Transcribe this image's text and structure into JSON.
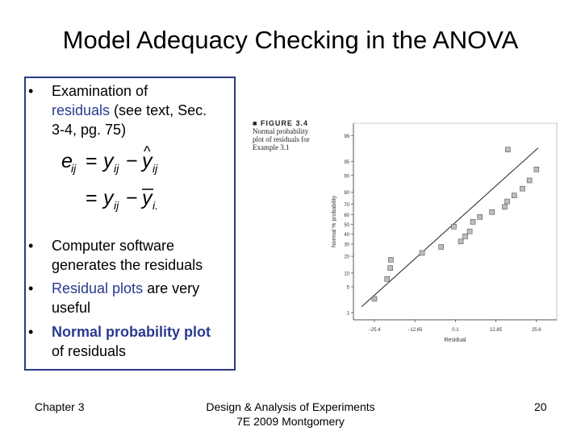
{
  "slide": {
    "title": "Model Adequacy Checking in the ANOVA"
  },
  "bullets": {
    "b1_line1": "Examination of",
    "b1_line2_hl": "residuals",
    "b1_line2_rest": " (see text, Sec.",
    "b1_line3": "3-4, pg. 75)",
    "b2_line1": "Computer software",
    "b2_line2": "generates the residuals",
    "b3_line1_hl": "Residual plots",
    "b3_line1_rest": " are very",
    "b3_line2": "useful",
    "b4_line1_hl": "Normal probability plot",
    "b4_line2": "of residuals",
    "bullet_char": "•"
  },
  "figure": {
    "label": "■ FIGURE 3.4",
    "caption_line1": "Normal probability",
    "caption_line2": "plot of residuals for",
    "caption_line3": "Example 3.1"
  },
  "chart_data": {
    "type": "scatter",
    "title": "",
    "xlabel": "Residual",
    "ylabel": "Normal % probability",
    "x_ticks": [
      "−25.4",
      "−12.65",
      "0.1",
      "12.85",
      "25.6"
    ],
    "y_ticks": [
      "1",
      "5",
      "10",
      "20",
      "30",
      "40",
      "50",
      "60",
      "70",
      "80",
      "90",
      "95",
      "99"
    ],
    "points": [
      {
        "x": -25.4,
        "y": 2.5
      },
      {
        "x": -21.4,
        "y": 7.5
      },
      {
        "x": -20.4,
        "y": 12.5
      },
      {
        "x": -20.2,
        "y": 17.5
      },
      {
        "x": -10.4,
        "y": 22.5
      },
      {
        "x": -4.4,
        "y": 27.5
      },
      {
        "x": 1.8,
        "y": 32.5
      },
      {
        "x": 3.2,
        "y": 37.5
      },
      {
        "x": 4.6,
        "y": 42.5
      },
      {
        "x": -0.4,
        "y": 47.5
      },
      {
        "x": 5.6,
        "y": 52.5
      },
      {
        "x": 7.8,
        "y": 57.5
      },
      {
        "x": 11.6,
        "y": 62.5
      },
      {
        "x": 15.6,
        "y": 67.5
      },
      {
        "x": 16.4,
        "y": 72.5
      },
      {
        "x": 18.6,
        "y": 77.5
      },
      {
        "x": 21.2,
        "y": 82.5
      },
      {
        "x": 23.4,
        "y": 87.5
      },
      {
        "x": 25.6,
        "y": 92.5
      },
      {
        "x": 16.6,
        "y": 97.5
      }
    ],
    "fit_line": [
      {
        "x": -25.4,
        "y": 2.5
      },
      {
        "x": 25.6,
        "y": 97.5
      }
    ],
    "grid": false,
    "legend": "none"
  },
  "footer": {
    "left": "Chapter 3",
    "center_line1": "Design & Analysis of Experiments",
    "center_line2": "7E 2009 Montgomery",
    "right": "20"
  }
}
